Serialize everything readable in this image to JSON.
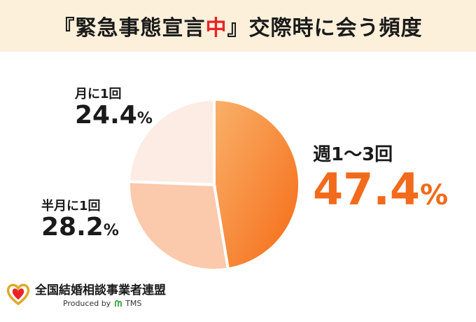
{
  "title": {
    "before": "『緊急事態宣言",
    "highlight": "中",
    "after": "』交際時に会う頻度"
  },
  "colors": {
    "accent": "#f26a1b",
    "title_highlight": "#e8242a",
    "title_background": "#fdf0da"
  },
  "chart_data": {
    "type": "pie",
    "start": "12 o'clock, clockwise",
    "slices": [
      {
        "label": "週1〜3回",
        "value": 47.4,
        "value_text": "47.4",
        "unit": "%",
        "color_from": "#f9b16a",
        "color_to": "#f56a14"
      },
      {
        "label": "半月に1回",
        "value": 28.2,
        "value_text": "28.2",
        "unit": "%",
        "color_from": "#fbc9ab",
        "color_to": "#fbc9ab"
      },
      {
        "label": "月に1回",
        "value": 24.4,
        "value_text": "24.4",
        "unit": "%",
        "color_from": "#fdece4",
        "color_to": "#fdece4"
      }
    ]
  },
  "logo": {
    "name": "全国結婚相談事業者連盟",
    "produced_by": "Produced by",
    "brand": "TMS"
  }
}
